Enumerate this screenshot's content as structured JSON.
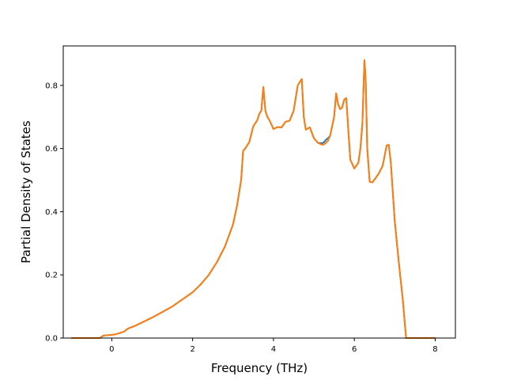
{
  "chart_data": {
    "type": "line",
    "title": "",
    "xlabel": "Frequency (THz)",
    "ylabel": "Partial Density of States",
    "xlim": [
      -1.2,
      8.5
    ],
    "ylim": [
      0.0,
      0.925
    ],
    "xticks": [
      0,
      2,
      4,
      6,
      8
    ],
    "yticks": [
      0.0,
      0.2,
      0.4,
      0.6,
      0.8
    ],
    "xtick_labels": [
      "0",
      "2",
      "4",
      "6",
      "8"
    ],
    "ytick_labels": [
      "0.0",
      "0.2",
      "0.4",
      "0.6",
      "0.8"
    ],
    "grid": false,
    "legend": "none",
    "series": [
      {
        "color": "#1f77b4",
        "x": [
          -1.0,
          -0.3,
          -0.2,
          0.0,
          0.1,
          0.3,
          0.4,
          0.6,
          1.0,
          1.5,
          2.0,
          2.2,
          2.4,
          2.6,
          2.8,
          3.0,
          3.1,
          3.2,
          3.25,
          3.3,
          3.4,
          3.5,
          3.55,
          3.6,
          3.65,
          3.7,
          3.75,
          3.8,
          3.85,
          3.9,
          4.0,
          4.1,
          4.2,
          4.3,
          4.4,
          4.5,
          4.6,
          4.65,
          4.7,
          4.75,
          4.8,
          4.9,
          5.0,
          5.1,
          5.2,
          5.25,
          5.3,
          5.35,
          5.4,
          5.5,
          5.55,
          5.6,
          5.65,
          5.7,
          5.75,
          5.8,
          5.9,
          6.0,
          6.1,
          6.15,
          6.2,
          6.25,
          6.28,
          6.32,
          6.38,
          6.45,
          6.6,
          6.7,
          6.8,
          6.85,
          6.9,
          7.0,
          7.1,
          7.2,
          7.28,
          7.3,
          7.5,
          8.0
        ],
        "y": [
          0.0,
          0.0,
          0.008,
          0.01,
          0.012,
          0.02,
          0.03,
          0.04,
          0.065,
          0.1,
          0.145,
          0.17,
          0.2,
          0.24,
          0.29,
          0.36,
          0.42,
          0.5,
          0.593,
          0.6,
          0.62,
          0.67,
          0.68,
          0.69,
          0.71,
          0.72,
          0.795,
          0.72,
          0.7,
          0.69,
          0.662,
          0.668,
          0.667,
          0.685,
          0.688,
          0.72,
          0.8,
          0.81,
          0.82,
          0.7,
          0.66,
          0.667,
          0.633,
          0.618,
          0.617,
          0.62,
          0.628,
          0.633,
          0.64,
          0.7,
          0.775,
          0.74,
          0.725,
          0.73,
          0.755,
          0.76,
          0.565,
          0.537,
          0.555,
          0.6,
          0.68,
          0.88,
          0.82,
          0.6,
          0.495,
          0.493,
          0.52,
          0.545,
          0.61,
          0.612,
          0.56,
          0.37,
          0.24,
          0.12,
          0.0,
          0.0,
          0.0,
          0.0
        ]
      },
      {
        "color": "#ff7f0e",
        "x": [
          -1.0,
          -0.3,
          -0.2,
          0.0,
          0.1,
          0.3,
          0.4,
          0.6,
          1.0,
          1.5,
          2.0,
          2.2,
          2.4,
          2.6,
          2.8,
          3.0,
          3.1,
          3.2,
          3.25,
          3.3,
          3.4,
          3.5,
          3.55,
          3.6,
          3.65,
          3.7,
          3.75,
          3.8,
          3.85,
          3.9,
          4.0,
          4.1,
          4.2,
          4.3,
          4.4,
          4.5,
          4.6,
          4.65,
          4.7,
          4.75,
          4.8,
          4.9,
          5.0,
          5.1,
          5.2,
          5.25,
          5.3,
          5.35,
          5.4,
          5.5,
          5.55,
          5.6,
          5.65,
          5.7,
          5.75,
          5.8,
          5.9,
          6.0,
          6.1,
          6.15,
          6.2,
          6.25,
          6.28,
          6.32,
          6.38,
          6.45,
          6.6,
          6.7,
          6.8,
          6.85,
          6.9,
          7.0,
          7.1,
          7.2,
          7.28,
          7.3,
          7.5,
          8.0
        ],
        "y": [
          0.0,
          0.0,
          0.008,
          0.01,
          0.012,
          0.02,
          0.03,
          0.04,
          0.065,
          0.1,
          0.145,
          0.17,
          0.2,
          0.24,
          0.29,
          0.36,
          0.42,
          0.5,
          0.593,
          0.6,
          0.62,
          0.67,
          0.68,
          0.69,
          0.71,
          0.72,
          0.795,
          0.72,
          0.7,
          0.69,
          0.662,
          0.668,
          0.667,
          0.685,
          0.688,
          0.72,
          0.8,
          0.81,
          0.82,
          0.7,
          0.66,
          0.667,
          0.633,
          0.618,
          0.612,
          0.613,
          0.618,
          0.625,
          0.64,
          0.7,
          0.775,
          0.74,
          0.725,
          0.73,
          0.755,
          0.76,
          0.565,
          0.537,
          0.555,
          0.6,
          0.68,
          0.88,
          0.82,
          0.6,
          0.495,
          0.493,
          0.52,
          0.545,
          0.61,
          0.612,
          0.56,
          0.37,
          0.24,
          0.12,
          0.0,
          0.0,
          0.0,
          0.0
        ]
      }
    ]
  }
}
